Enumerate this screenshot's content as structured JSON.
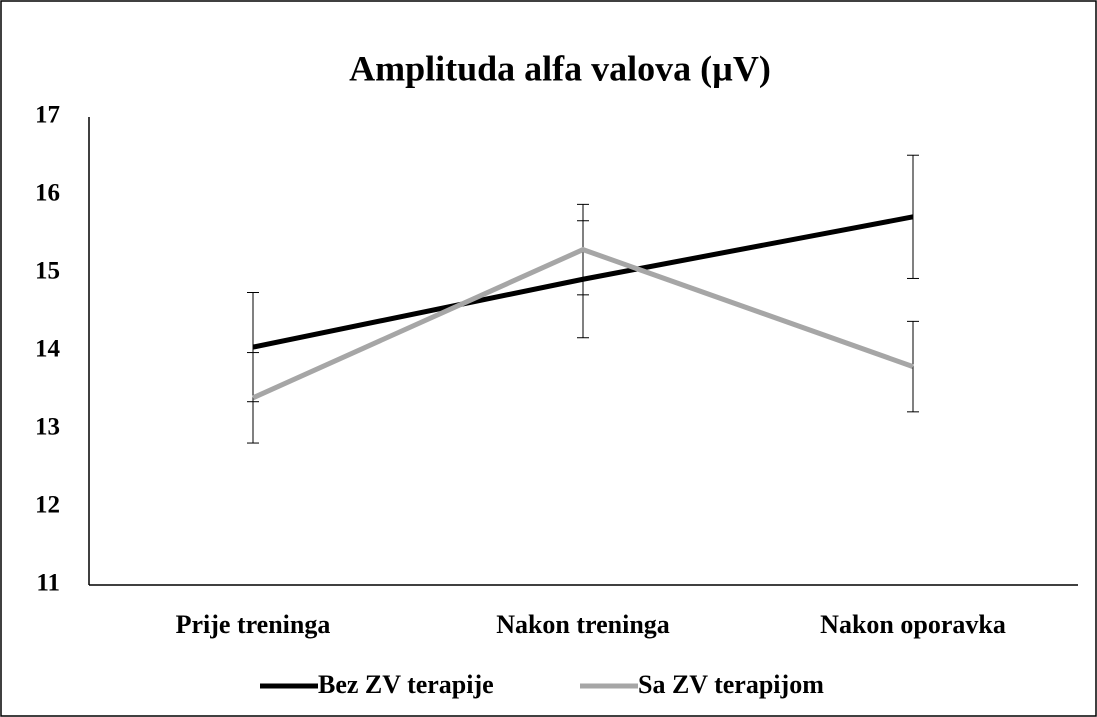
{
  "chart_data": {
    "type": "line",
    "title": "Amplituda alfa valova (µV)",
    "categories": [
      "Prije treninga",
      "Nakon treninga",
      "Nakon oporavka"
    ],
    "series": [
      {
        "name": "Bez ZV terapije",
        "color": "#000000",
        "values": [
          14.05,
          14.92,
          15.72
        ],
        "errors": [
          0.7,
          0.75,
          0.79
        ]
      },
      {
        "name": "Sa ZV terapijom",
        "color": "#a6a6a6",
        "values": [
          13.4,
          15.3,
          13.8
        ],
        "errors": [
          0.58,
          0.58,
          0.58
        ]
      }
    ],
    "ylim": [
      11,
      17
    ],
    "yticks": [
      11,
      12,
      13,
      14,
      15,
      16,
      17
    ],
    "grid": false,
    "legend": "bottom"
  }
}
